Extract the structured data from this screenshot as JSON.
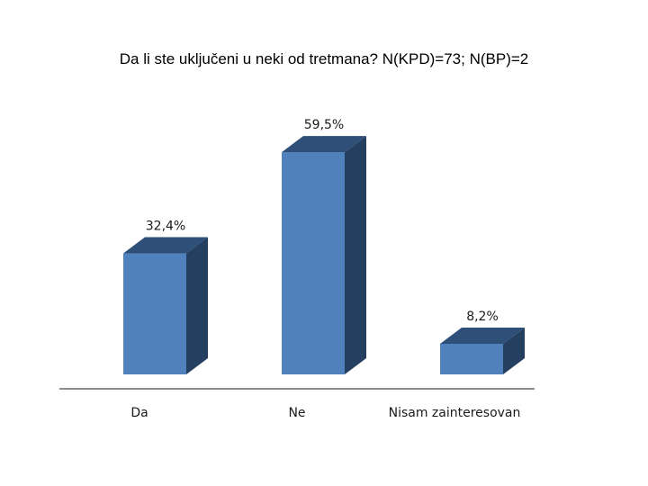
{
  "chart_data": {
    "type": "bar",
    "title": "Da li ste uključeni u neki od tretmana?  N(KPD)=73; N(BP)=2",
    "categories": [
      "Da",
      "Ne",
      "Nisam zainteresovan"
    ],
    "values": [
      32.4,
      59.5,
      8.2
    ],
    "value_labels": [
      "32,4%",
      "59,5%",
      "8,2%"
    ],
    "ylim": [
      0,
      70
    ],
    "grid": false,
    "legend": "none",
    "style": "3d-column",
    "colors": {
      "front": "#4f81bd",
      "side": "#243f60",
      "top": "#2e4f78",
      "axis": "#7f7f7f"
    }
  }
}
